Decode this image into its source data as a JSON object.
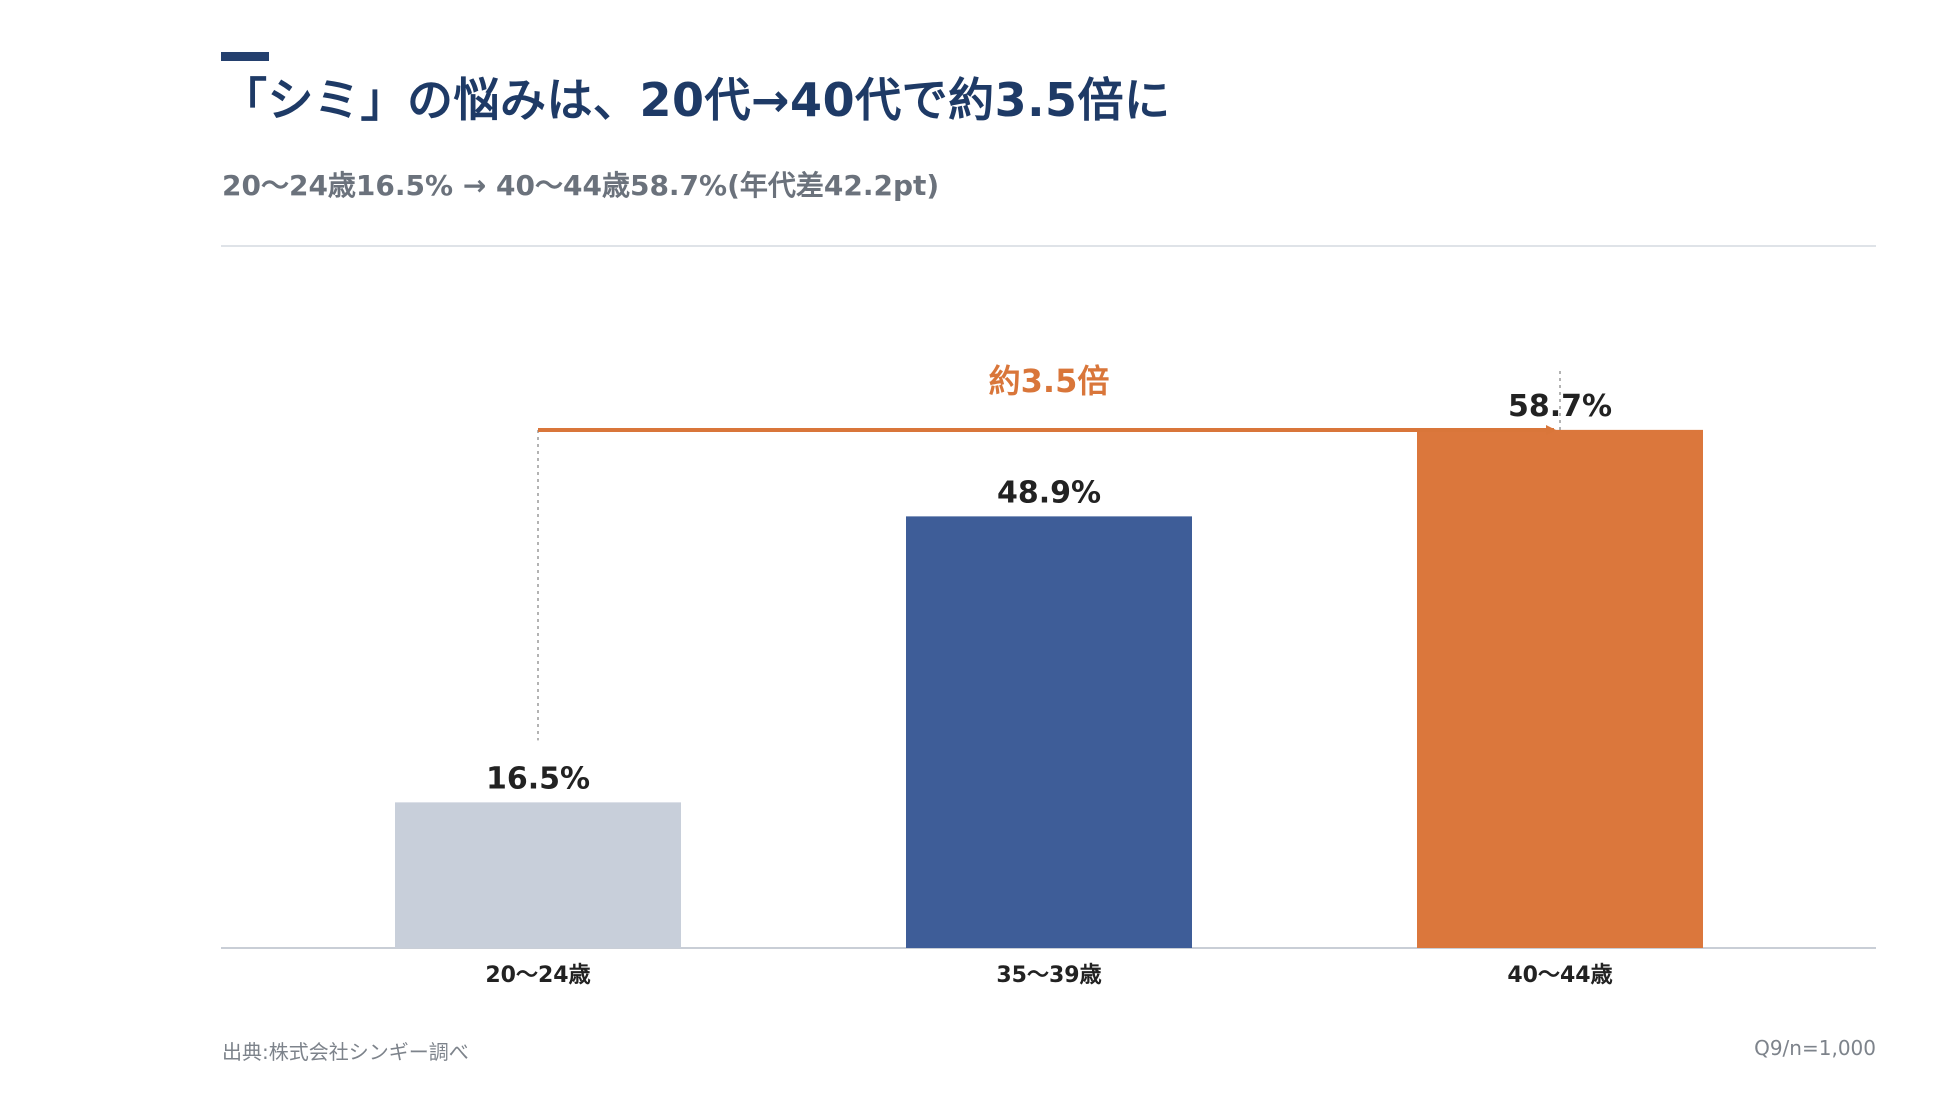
{
  "title": "「シミ」の悩みは、20代→40代で約3.5倍に",
  "subtitle": "20〜24歳16.5% → 40〜44歳58.7%(年代差42.2pt)",
  "source": "出典:株式会社シンギー調べ",
  "note": "Q9/n=1,000",
  "colors": {
    "accent": "#24406e",
    "title": "#1e3a66",
    "bar_light": "#c8cfda",
    "bar_blue": "#3e5d98",
    "bar_orange": "#db773c",
    "annotation": "#d9763a"
  },
  "chart_data": {
    "type": "bar",
    "categories": [
      "20〜24歳",
      "35〜39歳",
      "40〜44歳"
    ],
    "values": [
      16.5,
      48.9,
      58.7
    ],
    "value_labels": [
      "16.5%",
      "48.9%",
      "58.7%"
    ],
    "ylim": [
      0,
      75
    ],
    "grid": false,
    "annotation": {
      "label": "約3.5倍",
      "from_category": "20〜24歳",
      "to_category": "40〜44歳"
    }
  }
}
